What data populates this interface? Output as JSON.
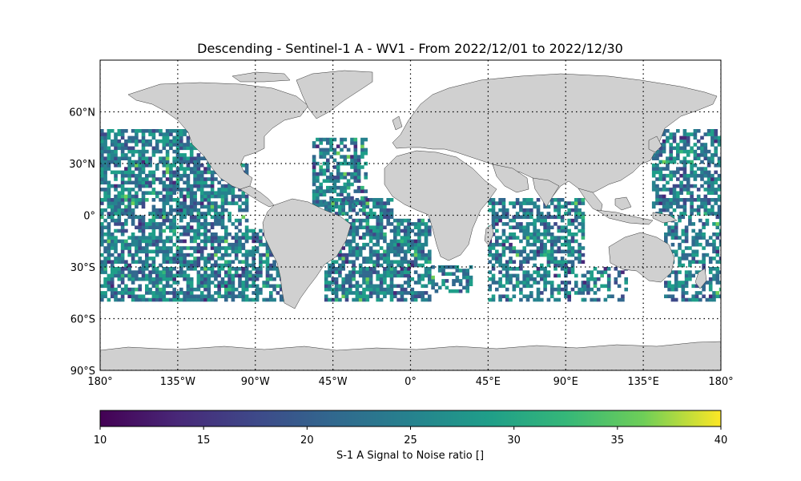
{
  "title": "Descending - Sentinel-1 A - WV1 - From 2022/12/01 to 2022/12/30",
  "map": {
    "projection": "PlateCarree",
    "lon_range": [
      -180,
      180
    ],
    "lat_range": [
      -90,
      90
    ],
    "lat_ticks": [
      {
        "value": 60,
        "label": "60°N"
      },
      {
        "value": 30,
        "label": "30°N"
      },
      {
        "value": 0,
        "label": "0°"
      },
      {
        "value": -30,
        "label": "30°S"
      },
      {
        "value": -60,
        "label": "60°S"
      },
      {
        "value": -90,
        "label": "90°S"
      }
    ],
    "lon_ticks": [
      {
        "value": -180,
        "label": "180°"
      },
      {
        "value": -135,
        "label": "135°W"
      },
      {
        "value": -90,
        "label": "90°W"
      },
      {
        "value": -45,
        "label": "45°W"
      },
      {
        "value": 0,
        "label": "0°"
      },
      {
        "value": 45,
        "label": "45°E"
      },
      {
        "value": 90,
        "label": "90°E"
      },
      {
        "value": 135,
        "label": "135°E"
      },
      {
        "value": 180,
        "label": "180°"
      }
    ],
    "gridlines": "dotted",
    "land_color": "#d0d0d0",
    "data_coverage_lat": [
      -50,
      50
    ]
  },
  "colorbar": {
    "label": "S-1 A Signal to Noise ratio []",
    "colormap": "viridis",
    "min": 10,
    "max": 40,
    "ticks": [
      10,
      15,
      20,
      25,
      30,
      35,
      40
    ]
  }
}
